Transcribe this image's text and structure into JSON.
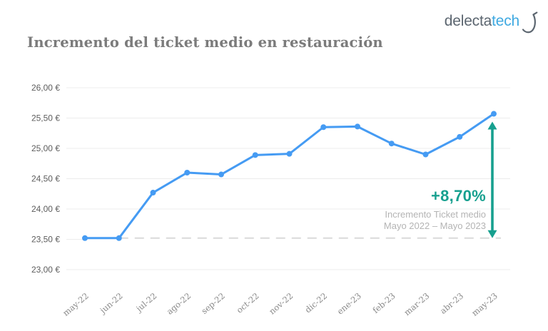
{
  "brand": {
    "name_primary": "delecta",
    "name_secondary": "tech",
    "color_primary": "#5c6670",
    "color_secondary": "#3fa9e1"
  },
  "page": {
    "colors": {
      "title": "#7b7b7b",
      "grid": "#ececec",
      "y_tick_text": "#5d5d5d",
      "x_tick_text": "#8a8a8a",
      "caption_text": "#b4b4b4",
      "background": "#ffffff"
    }
  },
  "chart_data": {
    "type": "line",
    "title": "Incremento del ticket medio en restauración",
    "xlabel": "",
    "ylabel": "",
    "ylim": [
      23.0,
      26.0
    ],
    "grid": true,
    "legend": "none",
    "categories": [
      "may-22",
      "jun-22",
      "jul-22",
      "ago-22",
      "sep-22",
      "oct-22",
      "nov-22",
      "dic-22",
      "ene-23",
      "feb-23",
      "mar-23",
      "abr-23",
      "may-23"
    ],
    "series": [
      {
        "name": "Ticket medio (€)",
        "color": "#459bf3",
        "values": [
          23.52,
          23.52,
          24.27,
          24.6,
          24.57,
          24.89,
          24.91,
          25.35,
          25.36,
          25.08,
          24.9,
          25.19,
          25.57
        ]
      }
    ],
    "y_ticks": {
      "values": [
        26.0,
        25.5,
        25.0,
        24.5,
        24.0,
        23.5,
        23.0
      ],
      "labels": [
        "26,00 €",
        "25,50 €",
        "25,00 €",
        "24,50 €",
        "24,00 €",
        "23,50 €",
        "23,00 €"
      ]
    },
    "baseline": {
      "value": 23.52,
      "style": "dashed",
      "color": "#d9d9d9"
    },
    "annotation": {
      "delta_label": "+8,70%",
      "caption_line1": "Incremento Ticket medio",
      "caption_line2": "Mayo 2022 – Mayo 2023",
      "color": "#17a08f",
      "from_value": 23.52,
      "to_value": 25.57
    }
  }
}
